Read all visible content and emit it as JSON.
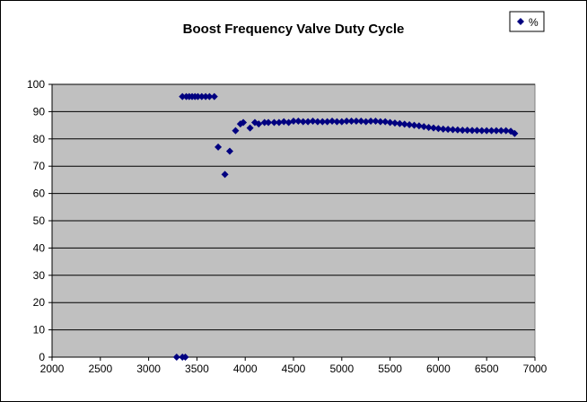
{
  "chart_data": {
    "type": "scatter",
    "title": "Boost Frequency Valve Duty Cycle",
    "xlabel": "",
    "ylabel": "",
    "xlim": [
      2000,
      7000
    ],
    "ylim": [
      0,
      100
    ],
    "x_ticks": [
      2000,
      2500,
      3000,
      3500,
      4000,
      4500,
      5000,
      5500,
      6000,
      6500,
      7000
    ],
    "y_ticks": [
      0,
      10,
      20,
      30,
      40,
      50,
      60,
      70,
      80,
      90,
      100
    ],
    "grid": "horizontal",
    "legend_position": "top-right",
    "colors": {
      "marker": "#000080",
      "plot_bg": "#c0c0c0",
      "grid": "#000000"
    },
    "series": [
      {
        "name": "%",
        "marker": "diamond",
        "x": [
          3290,
          3350,
          3380,
          3350,
          3390,
          3420,
          3450,
          3480,
          3510,
          3550,
          3590,
          3630,
          3680,
          3720,
          3790,
          3840,
          3900,
          3950,
          3980,
          4050,
          4100,
          4140,
          4200,
          4240,
          4300,
          4350,
          4400,
          4450,
          4500,
          4550,
          4600,
          4650,
          4700,
          4750,
          4800,
          4850,
          4900,
          4950,
          5000,
          5050,
          5100,
          5150,
          5200,
          5250,
          5300,
          5350,
          5400,
          5450,
          5500,
          5550,
          5600,
          5650,
          5700,
          5750,
          5800,
          5850,
          5900,
          5950,
          6000,
          6050,
          6100,
          6150,
          6200,
          6250,
          6300,
          6350,
          6400,
          6450,
          6500,
          6550,
          6600,
          6650,
          6700,
          6750,
          6790
        ],
        "y": [
          0,
          0,
          0,
          95.5,
          95.5,
          95.5,
          95.5,
          95.5,
          95.5,
          95.5,
          95.5,
          95.5,
          95.5,
          77,
          67,
          75.5,
          83,
          85.5,
          86,
          84,
          86,
          85.5,
          86,
          86,
          86,
          86,
          86.3,
          86,
          86.5,
          86.5,
          86.3,
          86.3,
          86.5,
          86.3,
          86.3,
          86.3,
          86.5,
          86.3,
          86.3,
          86.5,
          86.5,
          86.5,
          86.5,
          86.3,
          86.5,
          86.5,
          86.3,
          86.3,
          86,
          85.8,
          85.6,
          85.4,
          85.2,
          85,
          84.8,
          84.5,
          84.2,
          84,
          83.8,
          83.6,
          83.5,
          83.4,
          83.3,
          83.2,
          83.2,
          83.1,
          83.1,
          83,
          83,
          83,
          83,
          83,
          83,
          82.8,
          82
        ]
      }
    ]
  }
}
